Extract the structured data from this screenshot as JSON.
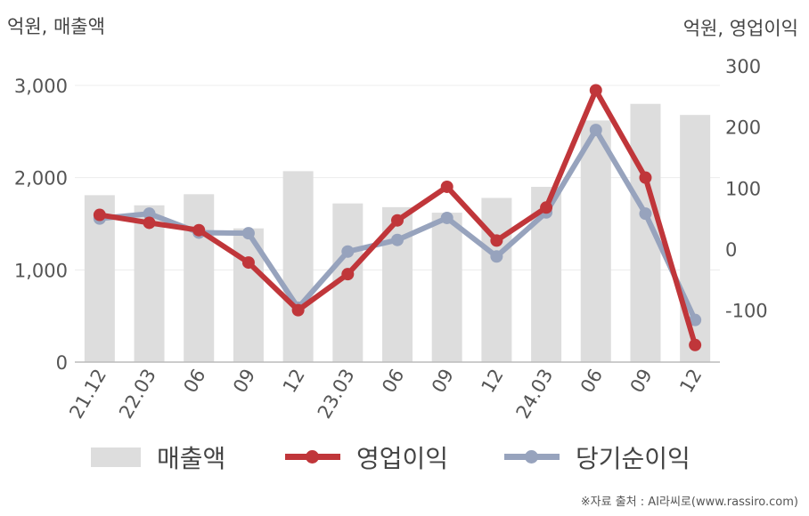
{
  "chart_data": {
    "type": "bar+line",
    "categories": [
      "21.12",
      "22.03",
      "06",
      "09",
      "12",
      "23.03",
      "06",
      "09",
      "12",
      "24.03",
      "06",
      "09",
      "12"
    ],
    "left_axis": {
      "label": "억원, 매출액",
      "range": [
        0,
        3000
      ],
      "ticks": [
        "0",
        "1,000",
        "2,000",
        "3,000"
      ]
    },
    "right_axis": {
      "label": "억원, 영업이익",
      "range": [
        -180,
        300
      ],
      "ticks": [
        "-100",
        "0",
        "100",
        "200",
        "300"
      ]
    },
    "series": [
      {
        "name": "매출액",
        "type": "bar",
        "axis": "left",
        "color": "#dddddd",
        "values": [
          1810,
          1700,
          1820,
          1450,
          2070,
          1720,
          1680,
          1620,
          1780,
          1900,
          2620,
          2800,
          2680
        ]
      },
      {
        "name": "영업이익",
        "type": "line",
        "axis": "right",
        "color": "#c0363a",
        "values": [
          56,
          43,
          31,
          -22,
          -100,
          -41,
          47,
          102,
          14,
          68,
          260,
          117,
          -157
        ]
      },
      {
        "name": "당기순이익",
        "type": "line",
        "axis": "right",
        "color": "#97a3bd",
        "values": [
          50,
          58,
          27,
          26,
          -96,
          -4,
          15,
          51,
          -12,
          60,
          195,
          58,
          -116
        ]
      }
    ],
    "grid": true,
    "legend_position": "bottom"
  },
  "source": "※자료 출처 : AI라씨로(www.rassiro.com)"
}
